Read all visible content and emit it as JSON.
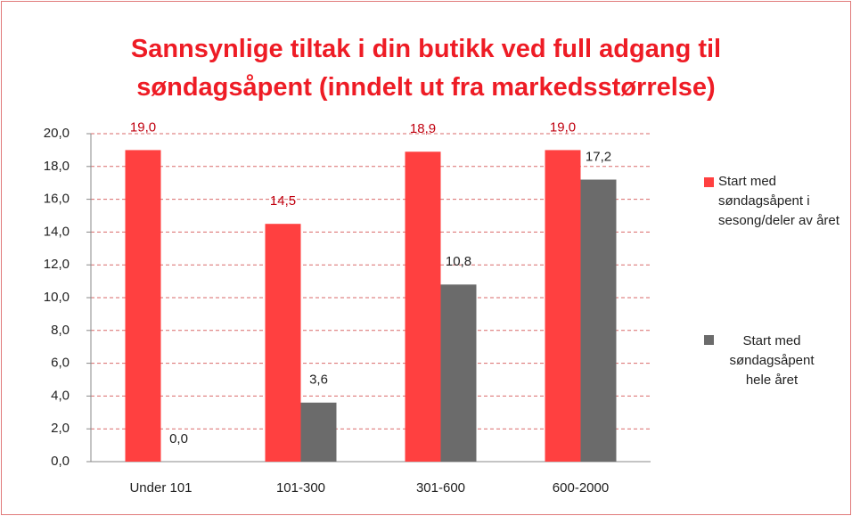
{
  "chart_data": {
    "type": "bar",
    "title": "Sannsynlige tiltak i din butikk ved full adgang til søndagsåpent (inndelt ut fra markedsstørrelse)",
    "categories": [
      "Under 101",
      "101-300",
      "301-600",
      "600-2000"
    ],
    "series": [
      {
        "name": "Start med søndagsåpent i sesong/deler av året",
        "color": "#ff4040",
        "values": [
          19.0,
          14.5,
          18.9,
          19.0
        ],
        "value_labels": [
          "19,0",
          "14,5",
          "18,9",
          "19,0"
        ]
      },
      {
        "name": "Start med søndagsåpent hele året",
        "color": "#6b6b6b",
        "values": [
          0.0,
          3.6,
          10.8,
          17.2
        ],
        "value_labels": [
          "0,0",
          "3,6",
          "10,8",
          "17,2"
        ]
      }
    ],
    "ylim": [
      0,
      20
    ],
    "yticks": [
      {
        "value": 0,
        "label": "0,0"
      },
      {
        "value": 2,
        "label": "2,0"
      },
      {
        "value": 4,
        "label": "4,0"
      },
      {
        "value": 6,
        "label": "6,0"
      },
      {
        "value": 8,
        "label": "8,0"
      },
      {
        "value": 10,
        "label": "10,0"
      },
      {
        "value": 12,
        "label": "12,0"
      },
      {
        "value": 14,
        "label": "14,0"
      },
      {
        "value": 16,
        "label": "16,0"
      },
      {
        "value": 18,
        "label": "18,0"
      },
      {
        "value": 20,
        "label": "20,0"
      }
    ],
    "grid": true,
    "legend": "right"
  }
}
